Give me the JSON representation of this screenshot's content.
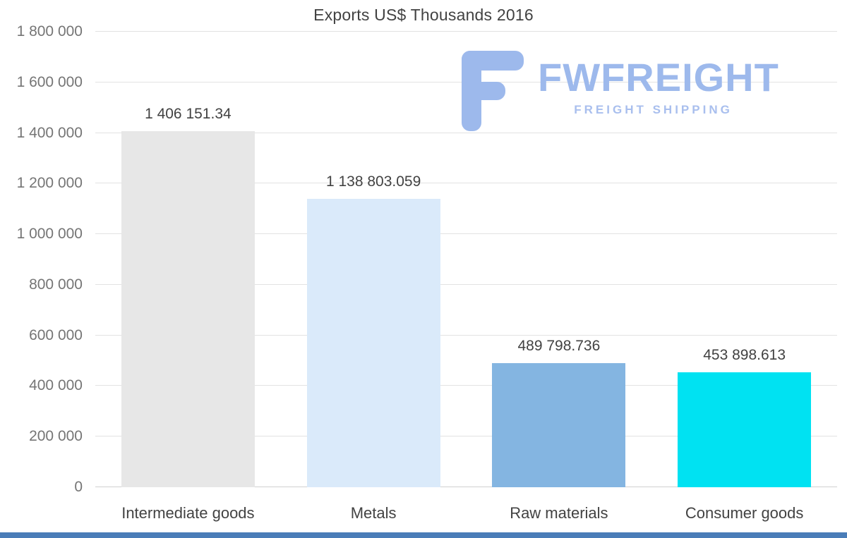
{
  "chart_data": {
    "type": "bar",
    "title": "Exports US$ Thousands 2016",
    "categories": [
      "Intermediate goods",
      "Metals",
      "Raw materials",
      "Consumer goods"
    ],
    "values": [
      1406151.34,
      1138803.059,
      489798.736,
      453898.613
    ],
    "value_labels": [
      "1 406 151.34",
      "1 138 803.059",
      "489 798.736",
      "453 898.613"
    ],
    "bar_colors": [
      "#e7e7e7",
      "#daeafa",
      "#84b5e1",
      "#00e2f2"
    ],
    "ylim": [
      0,
      1800000
    ],
    "yticks": [
      0,
      200000,
      400000,
      600000,
      800000,
      1000000,
      1200000,
      1400000,
      1600000,
      1800000
    ],
    "ytick_labels": [
      "0",
      "200 000",
      "400 000",
      "600 000",
      "800 000",
      "1 000 000",
      "1 200 000",
      "1 400 000",
      "1 600 000",
      "1 800 000"
    ],
    "grid": true,
    "legend": "none",
    "xlabel": "",
    "ylabel": ""
  },
  "watermark": {
    "brand": "FWFREIGHT",
    "tagline": "FREIGHT SHIPPING",
    "brand_color": "#9db9ec",
    "tagline_color": "#a9bfee",
    "icon_color": "#9db9ec"
  },
  "footer": {
    "strip_color": "#4a7db8"
  }
}
